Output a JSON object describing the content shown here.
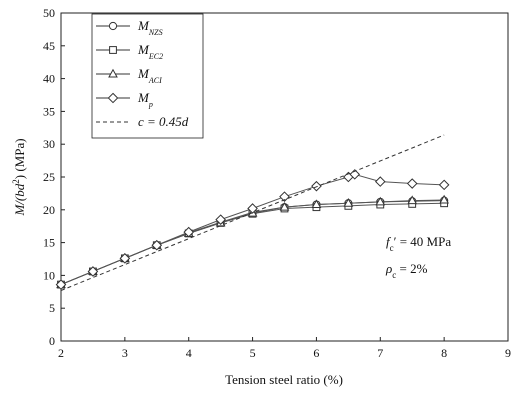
{
  "chart_data": {
    "type": "line",
    "xlabel": "Tension steel ratio (%)",
    "ylabel_parts": {
      "main": "M/(bd",
      "sup": "2",
      "tail": ") (MPa)"
    },
    "xlim": [
      2,
      9
    ],
    "ylim": [
      0,
      50
    ],
    "x_ticks": [
      2,
      3,
      4,
      5,
      6,
      7,
      8,
      9
    ],
    "y_ticks": [
      0,
      5,
      10,
      15,
      20,
      25,
      30,
      35,
      40,
      45,
      50
    ],
    "legend_position": "top-left",
    "series": [
      {
        "legend_main": "M",
        "legend_sub": "NZS",
        "marker": "circle",
        "x": [
          2,
          2.5,
          3,
          3.5,
          4,
          4.5,
          5,
          5.5,
          6,
          6.5,
          7,
          7.5,
          8
        ],
        "y": [
          8.6,
          10.6,
          12.6,
          14.6,
          16.5,
          18.1,
          19.6,
          20.4,
          20.8,
          21.0,
          21.2,
          21.3,
          21.4
        ]
      },
      {
        "legend_main": "M",
        "legend_sub": "EC2",
        "marker": "square",
        "x": [
          2,
          2.5,
          3,
          3.5,
          4,
          4.5,
          5,
          5.5,
          6,
          6.5,
          7,
          7.5,
          8
        ],
        "y": [
          8.6,
          10.6,
          12.6,
          14.6,
          16.4,
          18.0,
          19.4,
          20.2,
          20.4,
          20.6,
          20.8,
          20.9,
          21.0
        ]
      },
      {
        "legend_main": "M",
        "legend_sub": "ACI",
        "marker": "triangle",
        "x": [
          2,
          2.5,
          3,
          3.5,
          4,
          4.5,
          5,
          5.5,
          6,
          6.5,
          7,
          7.5,
          8
        ],
        "y": [
          8.6,
          10.6,
          12.6,
          14.6,
          16.4,
          18.0,
          19.5,
          20.4,
          20.8,
          21.0,
          21.2,
          21.4,
          21.5
        ]
      },
      {
        "legend_main": "M",
        "legend_sub": "p",
        "marker": "diamond",
        "x": [
          2,
          2.5,
          3,
          3.5,
          4,
          4.5,
          5,
          5.5,
          6,
          6.5,
          6.6,
          7,
          7.5,
          8
        ],
        "y": [
          8.6,
          10.6,
          12.6,
          14.6,
          16.6,
          18.5,
          20.2,
          22.0,
          23.6,
          25.0,
          25.4,
          24.3,
          24.0,
          23.8
        ]
      },
      {
        "legend_text": "c = 0.45d",
        "style": "dashed",
        "x": [
          2,
          8
        ],
        "y": [
          7.7,
          31.4
        ]
      }
    ],
    "annotations": [
      {
        "main": "f",
        "sub": "c",
        "tail": "′ = 40 MPa"
      },
      {
        "main": "ρ",
        "sub": "c",
        "tail": " = 2%"
      }
    ]
  }
}
